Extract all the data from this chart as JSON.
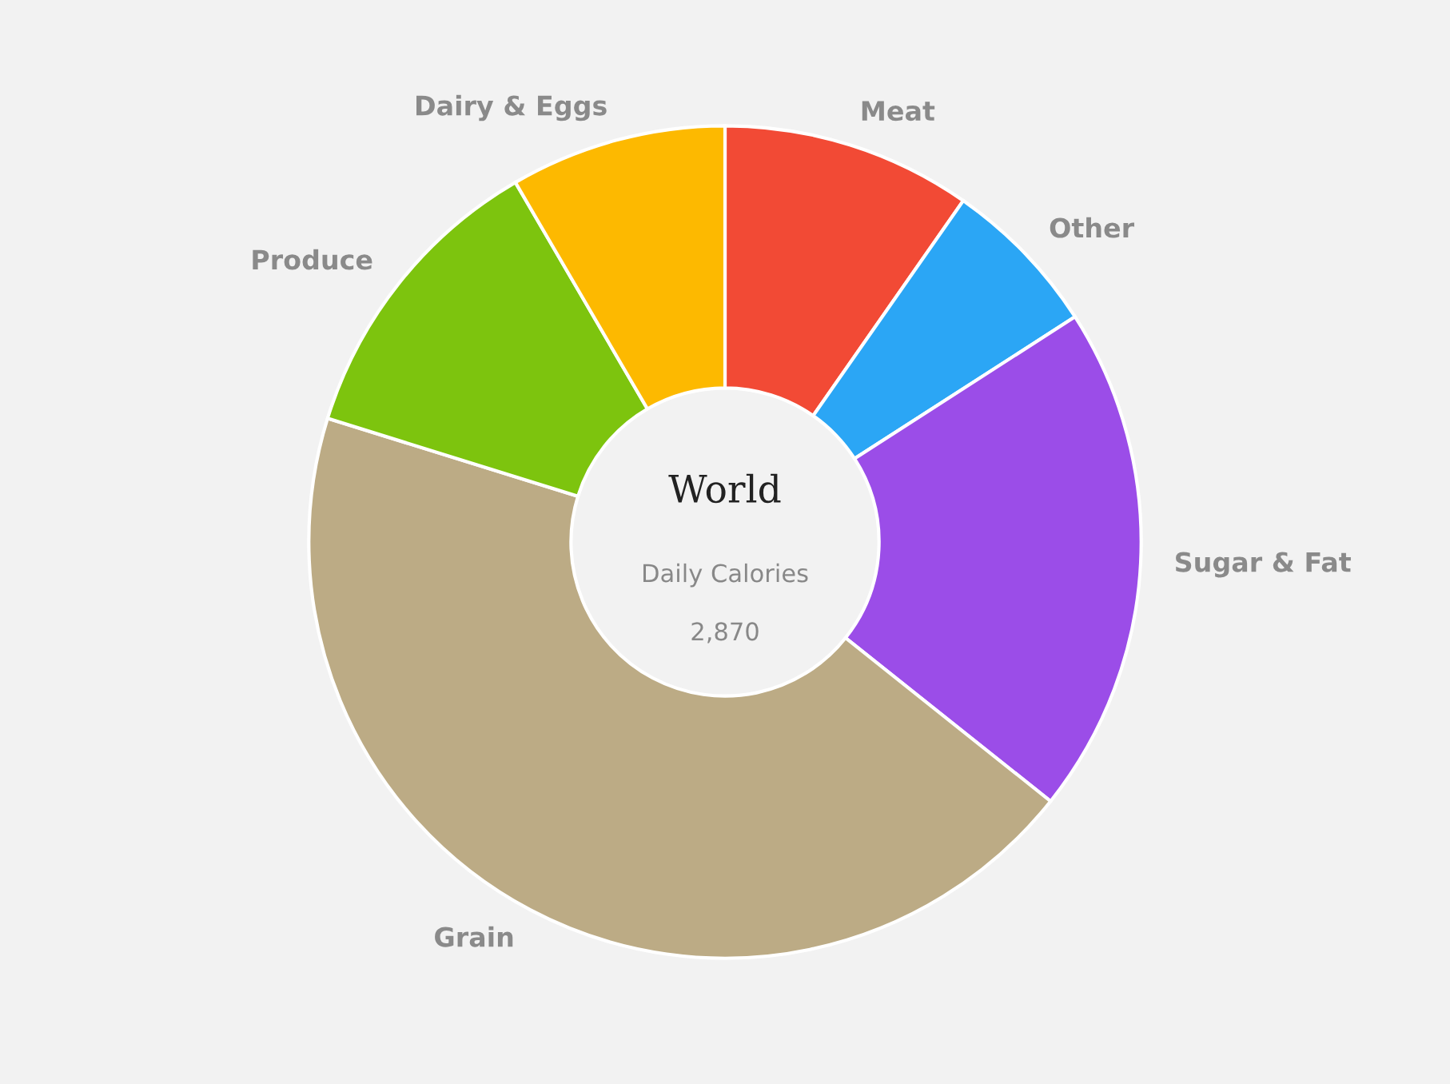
{
  "chart_data": {
    "type": "donut",
    "categories": [
      "Meat",
      "Other",
      "Sugar & Fat",
      "Grain",
      "Produce",
      "Dairy & Eggs"
    ],
    "values": [
      9.7,
      6.2,
      19.8,
      44.1,
      11.8,
      8.4
    ],
    "colors": [
      "#f24a35",
      "#2ba6f5",
      "#9b4de8",
      "#bcab85",
      "#7dc40e",
      "#fdb900"
    ],
    "annotations": [
      "World",
      "Daily Calories",
      "2,870"
    ]
  }
}
